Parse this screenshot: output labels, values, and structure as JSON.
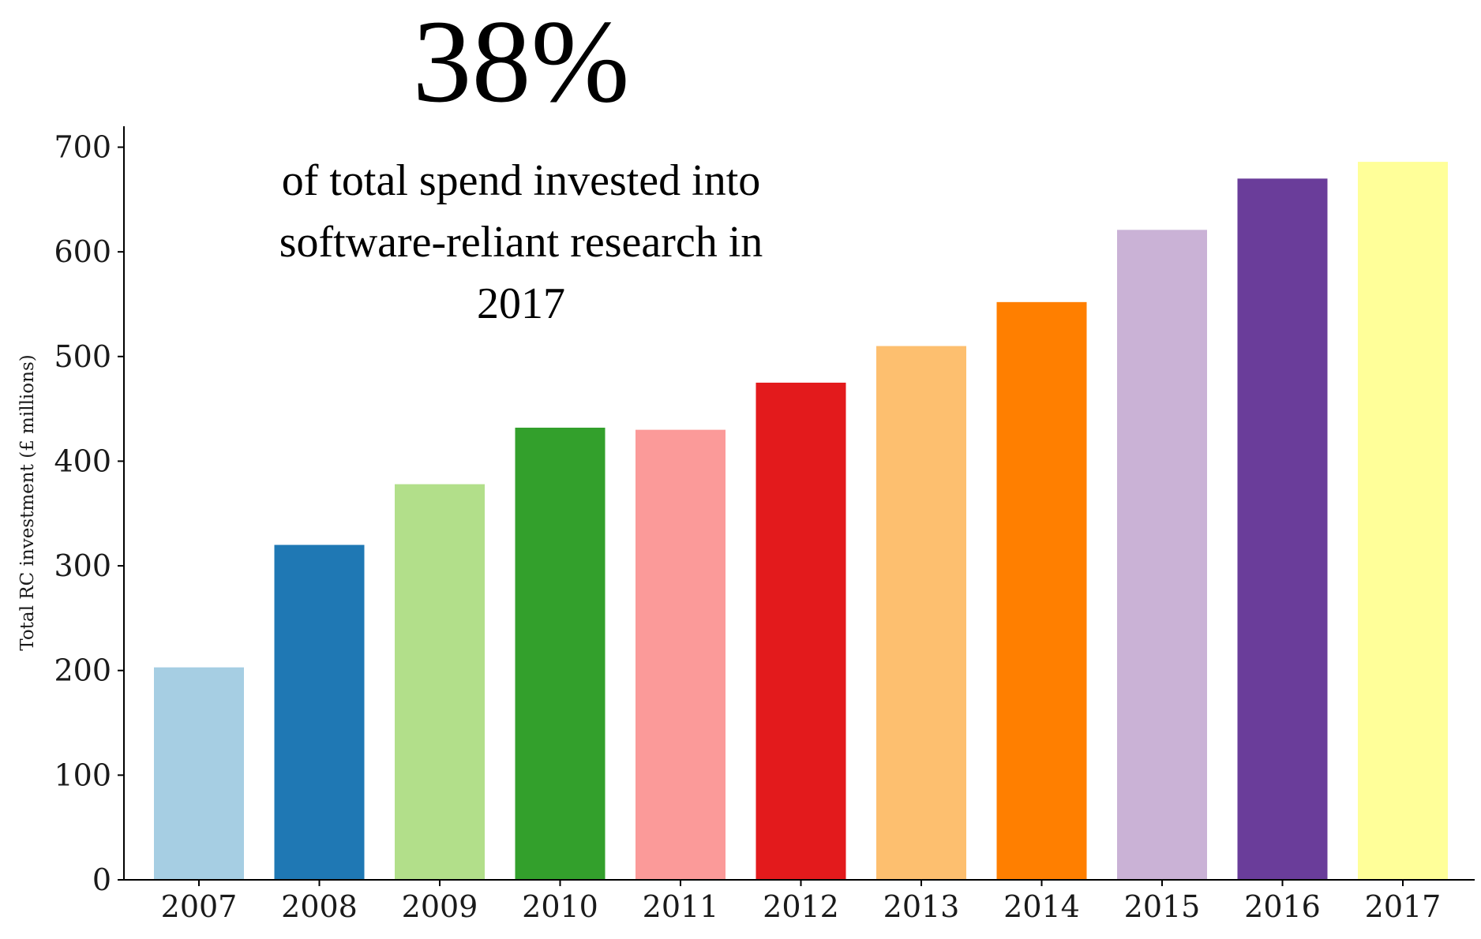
{
  "chart_data": {
    "type": "bar",
    "categories": [
      "2007",
      "2008",
      "2009",
      "2010",
      "2011",
      "2012",
      "2013",
      "2014",
      "2015",
      "2016",
      "2017"
    ],
    "values": [
      203,
      320,
      378,
      432,
      430,
      475,
      510,
      552,
      621,
      670,
      686
    ],
    "colors": [
      "#a6cee3",
      "#1f78b4",
      "#b2df8a",
      "#33a02c",
      "#fb9a99",
      "#e31a1c",
      "#fdbf6f",
      "#ff7f00",
      "#cab2d6",
      "#6a3d9a",
      "#ffff99"
    ],
    "title": "",
    "xlabel": "",
    "ylabel": "Total RC investment (£ millions)",
    "ylim": [
      0,
      720
    ],
    "yticks": [
      "0",
      "100",
      "200",
      "300",
      "400",
      "500",
      "600",
      "700"
    ],
    "grid": false,
    "legend": "none",
    "annotation": {
      "headline": "38%",
      "lines": [
        "of total spend invested into",
        "software-reliant research in",
        "2017"
      ]
    }
  }
}
